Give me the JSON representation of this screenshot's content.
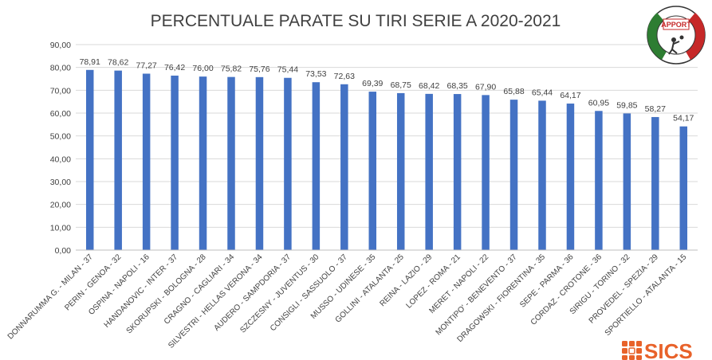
{
  "chart_data": {
    "type": "bar",
    "title": "PERCENTUALE PARATE SU TIRI SERIE A 2020-2021",
    "xlabel": "",
    "ylabel": "",
    "ylim": [
      0,
      90
    ],
    "yticks": [
      "0,00",
      "10,00",
      "20,00",
      "30,00",
      "40,00",
      "50,00",
      "60,00",
      "70,00",
      "80,00",
      "90,00"
    ],
    "grid": true,
    "bar_color": "#4472C4",
    "categories": [
      "DONNARUMMA G. - MILAN - 37",
      "PERIN - GENOA - 32",
      "OSPINA - NAPOLI - 16",
      "HANDANOVIC - INTER - 37",
      "SKORUPSKI - BOLOGNA - 28",
      "CRAGNO - CAGLIARI - 34",
      "SILVESTRI - HELLAS VERONA - 34",
      "AUDERO - SAMPDORIA - 37",
      "SZCZESNY - JUVENTUS - 30",
      "CONSIGLI - SASSUOLO - 37",
      "MUSSO - UDINESE - 35",
      "GOLLINI - ATALANTA - 25",
      "REINA - LAZIO - 29",
      "LOPEZ - ROMA - 21",
      "MERET - NAPOLI - 22",
      "MONTIPO' - BENEVENTO - 37",
      "DRAGOWSKI - FIORENTINA - 35",
      "SEPE - PARMA - 36",
      "CORDAZ - CROTONE - 36",
      "SIRIGU - TORINO - 32",
      "PROVEDEL - SPEZIA - 29",
      "SPORTIELLO - ATALANTA - 15"
    ],
    "values": [
      78.91,
      78.62,
      77.27,
      76.42,
      76.0,
      75.82,
      75.76,
      75.44,
      73.53,
      72.63,
      69.39,
      68.75,
      68.42,
      68.35,
      67.9,
      65.88,
      65.44,
      64.17,
      60.95,
      59.85,
      58.27,
      54.17
    ],
    "data_labels": [
      "78,91",
      "78,62",
      "77,27",
      "76,42",
      "76,00",
      "75,82",
      "75,76",
      "75,44",
      "73,53",
      "72,63",
      "69,39",
      "68,75",
      "68,42",
      "68,35",
      "67,90",
      "65,88",
      "65,44",
      "64,17",
      "60,95",
      "59,85",
      "58,27",
      "54,17"
    ]
  },
  "logo": {
    "text": "APPORT",
    "name": "apport-logo-icon",
    "colors": [
      "#2e7d32",
      "#ffffff",
      "#c62828"
    ]
  },
  "brand": {
    "text": "SICS",
    "color": "#e8622a",
    "icon": "sics-grid-icon"
  }
}
